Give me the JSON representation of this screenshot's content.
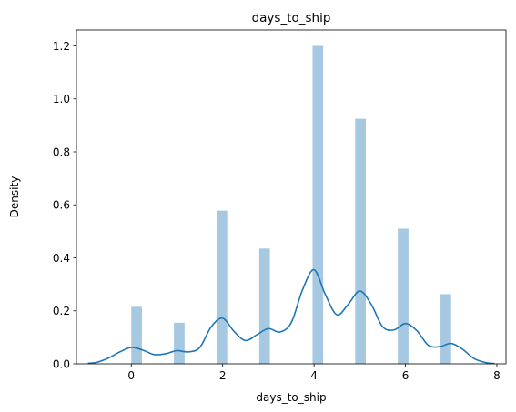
{
  "chart_data": {
    "type": "bar",
    "title": "days_to_ship",
    "xlabel": "days_to_ship",
    "ylabel": "Density",
    "xlim": [
      -1.2,
      8.2
    ],
    "ylim": [
      0,
      1.26
    ],
    "grid": false,
    "xticks": [
      0,
      2,
      4,
      6,
      8
    ],
    "yticks": [
      0.0,
      0.2,
      0.4,
      0.6,
      0.8,
      1.0,
      1.2
    ],
    "ytick_labels": [
      "0.0",
      "0.2",
      "0.4",
      "0.6",
      "0.8",
      "1.0",
      "1.2"
    ],
    "histogram": {
      "color": "#a6c8e0",
      "bins": [
        {
          "x0": 0.0,
          "x1": 0.233,
          "value": 0.215
        },
        {
          "x0": 0.933,
          "x1": 1.167,
          "value": 0.155
        },
        {
          "x0": 1.867,
          "x1": 2.1,
          "value": 0.578
        },
        {
          "x0": 2.8,
          "x1": 3.033,
          "value": 0.435
        },
        {
          "x0": 3.967,
          "x1": 4.2,
          "value": 1.2
        },
        {
          "x0": 4.9,
          "x1": 5.133,
          "value": 0.925
        },
        {
          "x0": 5.833,
          "x1": 6.067,
          "value": 0.51
        },
        {
          "x0": 6.767,
          "x1": 7.0,
          "value": 0.263
        }
      ]
    },
    "kde": {
      "color": "#1f77b4",
      "x": [
        -0.95,
        -0.75,
        -0.5,
        -0.25,
        0.0,
        0.25,
        0.5,
        0.75,
        1.0,
        1.25,
        1.5,
        1.75,
        2.0,
        2.25,
        2.5,
        2.75,
        3.0,
        3.25,
        3.5,
        3.75,
        4.0,
        4.25,
        4.5,
        4.75,
        5.0,
        5.25,
        5.5,
        5.75,
        6.0,
        6.25,
        6.5,
        6.75,
        7.0,
        7.25,
        7.5,
        7.75,
        7.95
      ],
      "y": [
        0.002,
        0.006,
        0.022,
        0.045,
        0.062,
        0.052,
        0.035,
        0.038,
        0.05,
        0.045,
        0.062,
        0.14,
        0.172,
        0.122,
        0.088,
        0.11,
        0.133,
        0.12,
        0.155,
        0.28,
        0.355,
        0.26,
        0.185,
        0.225,
        0.275,
        0.225,
        0.14,
        0.128,
        0.152,
        0.125,
        0.07,
        0.065,
        0.077,
        0.055,
        0.02,
        0.005,
        0.001
      ]
    }
  }
}
